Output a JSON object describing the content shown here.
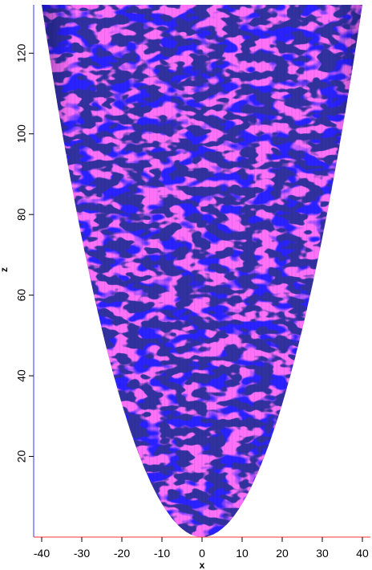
{
  "chart_data": {
    "type": "heatmap",
    "description_type": "3d-isosurface-projection",
    "xlabel": "x",
    "ylabel": "z",
    "xlim": [
      -42,
      42
    ],
    "ylim": [
      0,
      132
    ],
    "x_ticks": [
      -40,
      -30,
      -20,
      -10,
      0,
      10,
      20,
      30,
      40
    ],
    "y_ticks": [
      20,
      40,
      60,
      80,
      100,
      120
    ],
    "x_tick_labels": [
      "-40",
      "-30",
      "-20",
      "-10",
      "0",
      "10",
      "20",
      "30",
      "40"
    ],
    "y_tick_labels": [
      "20",
      "40",
      "60",
      "80",
      "100",
      "120"
    ],
    "grid": false,
    "series": [
      {
        "shape": "paraboloid-surface",
        "vertex": [
          0,
          0
        ],
        "half_width_at_top": 40,
        "top_z": 132,
        "base_color": "#2a22ff",
        "patch_color": "#ff2cf0",
        "dark_color": "#080872"
      }
    ],
    "colors": {
      "surface": "#2a22ff",
      "surface_dark": "#080872",
      "patches": "#ff2cf0",
      "axis_bottom": "#ff3030",
      "axis_left": "#3333ff"
    }
  }
}
